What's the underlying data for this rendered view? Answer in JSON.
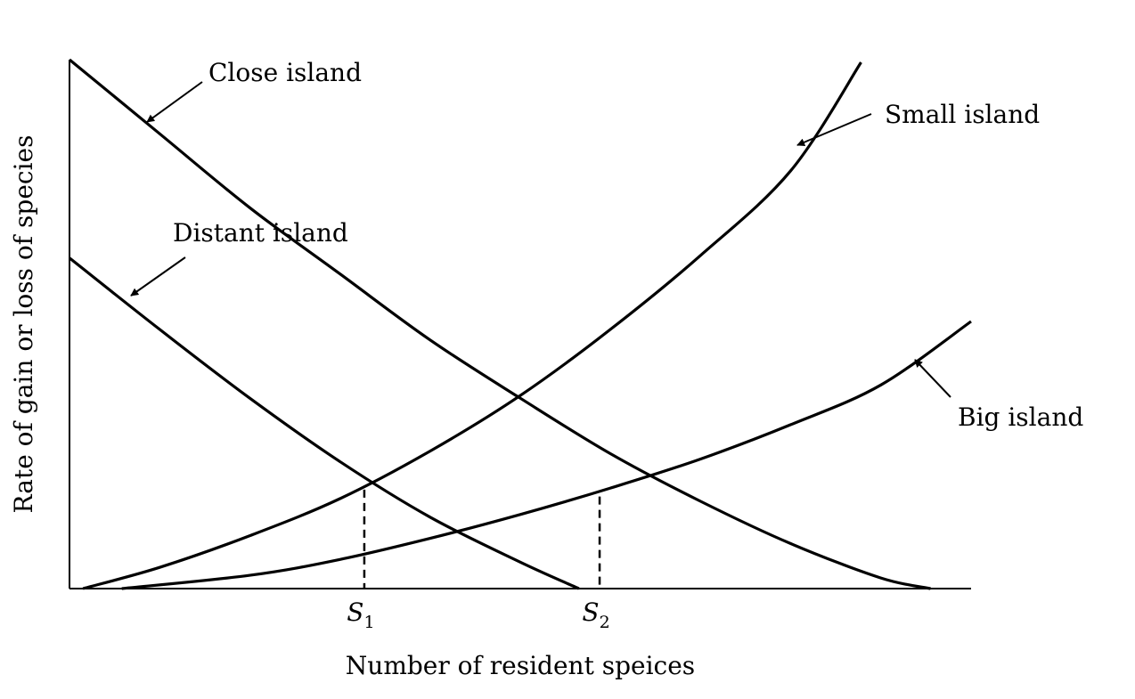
{
  "chart_data": {
    "type": "line",
    "title": "",
    "xlabel": "Number of resident speices",
    "ylabel": "Rate of gain or loss of species",
    "x_tick_labels": [
      {
        "label": "S",
        "sub": "1",
        "x": 0.327
      },
      {
        "label": "S",
        "sub": "2",
        "x": 0.588
      }
    ],
    "xlim": [
      0,
      1
    ],
    "ylim": [
      0,
      1
    ],
    "grid": false,
    "legend": "none",
    "series": [
      {
        "name": "Close island",
        "kind": "immigration",
        "points": [
          [
            0,
            1.0
          ],
          [
            0.1,
            0.86
          ],
          [
            0.2,
            0.72
          ],
          [
            0.3,
            0.595
          ],
          [
            0.4,
            0.47
          ],
          [
            0.5,
            0.36
          ],
          [
            0.6,
            0.255
          ],
          [
            0.7,
            0.165
          ],
          [
            0.8,
            0.085
          ],
          [
            0.9,
            0.02
          ],
          [
            0.955,
            0.0
          ]
        ]
      },
      {
        "name": "Distant island",
        "kind": "immigration",
        "points": [
          [
            0,
            0.625
          ],
          [
            0.1,
            0.49
          ],
          [
            0.2,
            0.36
          ],
          [
            0.3,
            0.24
          ],
          [
            0.4,
            0.135
          ],
          [
            0.5,
            0.05
          ],
          [
            0.565,
            0.0
          ]
        ]
      },
      {
        "name": "Small island",
        "kind": "extinction",
        "points": [
          [
            0.015,
            0.0
          ],
          [
            0.1,
            0.04
          ],
          [
            0.2,
            0.1
          ],
          [
            0.3,
            0.17
          ],
          [
            0.4,
            0.26
          ],
          [
            0.5,
            0.365
          ],
          [
            0.6,
            0.49
          ],
          [
            0.7,
            0.63
          ],
          [
            0.8,
            0.79
          ],
          [
            0.878,
            0.995
          ]
        ]
      },
      {
        "name": "Big island",
        "kind": "extinction",
        "points": [
          [
            0.058,
            0.0
          ],
          [
            0.2,
            0.025
          ],
          [
            0.3,
            0.055
          ],
          [
            0.4,
            0.095
          ],
          [
            0.5,
            0.14
          ],
          [
            0.6,
            0.19
          ],
          [
            0.7,
            0.245
          ],
          [
            0.8,
            0.31
          ],
          [
            0.9,
            0.385
          ],
          [
            1.0,
            0.505
          ]
        ]
      }
    ],
    "equilibria": [
      {
        "label": "S1",
        "x": 0.327,
        "y": 0.187
      },
      {
        "label": "S2",
        "x": 0.588,
        "y": 0.174
      }
    ]
  }
}
